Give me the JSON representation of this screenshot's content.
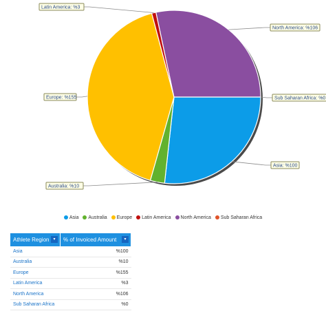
{
  "chart_data": {
    "type": "pie",
    "categories": [
      "Asia",
      "Australia",
      "Europe",
      "Latin America",
      "North America",
      "Sub Saharan Africa"
    ],
    "values": [
      100,
      10,
      155,
      3,
      106,
      0
    ],
    "labels": [
      "Asia: %100",
      "Australia: %10",
      "Europe: %155",
      "Latin America: %3",
      "North America: %106",
      "Sub Saharan Africa: %0"
    ],
    "colors": [
      "#0c9ce8",
      "#62b22e",
      "#ffc000",
      "#c0100e",
      "#8a4ea0",
      "#e0542a"
    ],
    "legend": "bottom"
  },
  "legend": {
    "items": [
      {
        "label": "Asia",
        "color": "#0c9ce8"
      },
      {
        "label": "Australia",
        "color": "#62b22e"
      },
      {
        "label": "Europe",
        "color": "#ffc000"
      },
      {
        "label": "Latin America",
        "color": "#c0100e"
      },
      {
        "label": "North America",
        "color": "#8a4ea0"
      },
      {
        "label": "Sub Saharan Africa",
        "color": "#e0542a"
      }
    ]
  },
  "table": {
    "headers": [
      "Athlete Region",
      "% of Invoiced Amount"
    ],
    "sort_icon": "▾",
    "rows": [
      {
        "region": "Asia",
        "value": "%100"
      },
      {
        "region": "Australia",
        "value": "%10"
      },
      {
        "region": "Europe",
        "value": "%155"
      },
      {
        "region": "Latin America",
        "value": "%3"
      },
      {
        "region": "North America",
        "value": "%106"
      },
      {
        "region": "Sub Saharan Africa",
        "value": "%0"
      }
    ]
  }
}
